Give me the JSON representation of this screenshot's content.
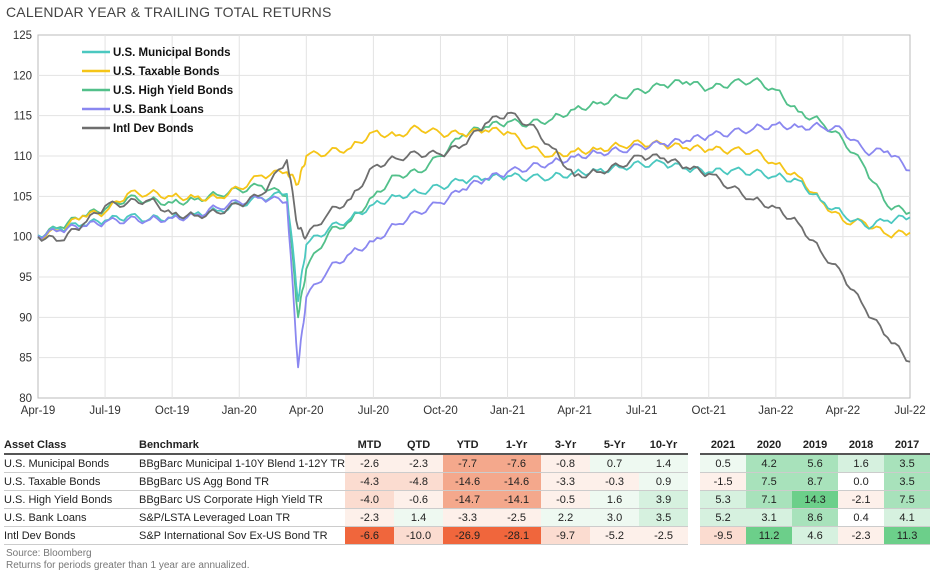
{
  "title": "CALENDAR YEAR & TRAILING TOTAL RETURNS",
  "colors": {
    "muni": "#4bc8c0",
    "taxable": "#f5c518",
    "highyield": "#52c08a",
    "bankloans": "#8a87f0",
    "intldev": "#6e6e6e",
    "red_strong": "#f0663c",
    "red_mid": "#f4a88c",
    "red_light": "#fbdcd0",
    "red_faint": "#fdf0ea",
    "green_strong": "#6ccf8a",
    "green_mid": "#a8e2bb",
    "green_light": "#d6f1df",
    "green_faint": "#eef9f1"
  },
  "chart_data": {
    "type": "line",
    "title": "CALENDAR YEAR & TRAILING TOTAL RETURNS",
    "ylim": [
      80,
      125
    ],
    "yticks": [
      "80",
      "85",
      "90",
      "95",
      "100",
      "105",
      "110",
      "115",
      "120",
      "125"
    ],
    "xlim": [
      "2019-04",
      "2022-07"
    ],
    "xticks": [
      "Apr-19",
      "Jul-19",
      "Oct-19",
      "Jan-20",
      "Apr-20",
      "Jul-20",
      "Oct-20",
      "Jan-21",
      "Apr-21",
      "Jul-21",
      "Oct-21",
      "Jan-22",
      "Apr-22",
      "Jul-22"
    ],
    "grid": true,
    "legend_position": "top-left",
    "x": [
      "2019-04",
      "2019-05",
      "2019-06",
      "2019-07",
      "2019-08",
      "2019-09",
      "2019-10",
      "2019-11",
      "2019-12",
      "2020-01",
      "2020-02",
      "2020-03-05",
      "2020-03-20",
      "2020-04",
      "2020-05",
      "2020-06",
      "2020-07",
      "2020-08",
      "2020-09",
      "2020-10",
      "2020-11",
      "2020-12",
      "2021-01",
      "2021-02",
      "2021-03",
      "2021-04",
      "2021-05",
      "2021-06",
      "2021-07",
      "2021-08",
      "2021-09",
      "2021-10",
      "2021-11",
      "2021-12",
      "2022-01",
      "2022-02",
      "2022-03",
      "2022-04",
      "2022-05",
      "2022-06",
      "2022-07"
    ],
    "series": [
      {
        "name": "U.S.  Municipal Bonds",
        "values": [
          100.2,
          101.0,
          101.5,
          102.0,
          102.5,
          102.2,
          102.4,
          102.8,
          103.2,
          104.0,
          104.8,
          105.3,
          92.0,
          99.0,
          101.0,
          102.3,
          104.0,
          105.0,
          105.5,
          106.2,
          107.0,
          107.2,
          107.5,
          107.3,
          107.4,
          107.9,
          108.2,
          108.6,
          109.0,
          109.1,
          108.4,
          108.0,
          108.2,
          108.0,
          107.5,
          107.0,
          104.5,
          102.8,
          101.3,
          102.0,
          102.4
        ]
      },
      {
        "name": "U.S. Taxable Bonds",
        "values": [
          100.0,
          100.8,
          102.6,
          103.0,
          105.3,
          105.4,
          105.0,
          104.9,
          104.8,
          106.0,
          107.6,
          108.0,
          106.5,
          110.0,
          110.5,
          111.0,
          113.0,
          112.5,
          113.5,
          112.8,
          112.7,
          113.2,
          113.0,
          111.0,
          110.0,
          110.6,
          110.8,
          111.3,
          111.6,
          111.4,
          111.0,
          110.8,
          110.7,
          110.6,
          109.0,
          107.5,
          104.5,
          102.0,
          101.7,
          100.2,
          100.5
        ]
      },
      {
        "name": "U.S. High Yield Bonds",
        "values": [
          100.1,
          101.2,
          102.6,
          103.4,
          104.8,
          104.5,
          104.2,
          104.6,
          105.2,
          105.8,
          106.3,
          105.0,
          90.0,
          96.0,
          100.5,
          102.0,
          105.0,
          107.6,
          108.0,
          110.0,
          112.6,
          113.6,
          114.2,
          114.0,
          114.6,
          115.8,
          116.5,
          117.3,
          118.1,
          118.8,
          119.2,
          118.3,
          119.0,
          119.4,
          118.2,
          115.5,
          114.3,
          112.0,
          108.5,
          103.8,
          103.0
        ]
      },
      {
        "name": "U.S. Bank Loans",
        "values": [
          100.1,
          100.8,
          101.3,
          101.8,
          102.1,
          102.1,
          102.3,
          102.6,
          103.6,
          104.3,
          104.8,
          104.3,
          83.8,
          92.5,
          96.0,
          98.0,
          99.4,
          101.5,
          103.0,
          104.2,
          105.9,
          107.1,
          108.0,
          108.6,
          109.2,
          109.9,
          110.4,
          110.7,
          111.2,
          111.5,
          111.9,
          112.5,
          112.9,
          113.4,
          113.9,
          113.6,
          113.7,
          113.2,
          110.5,
          110.6,
          108.2
        ]
      },
      {
        "name": "Intl Dev Bonds",
        "values": [
          100.0,
          99.5,
          101.5,
          103.8,
          104.2,
          104.6,
          102.8,
          102.6,
          103.0,
          104.0,
          105.2,
          109.5,
          101.0,
          100.0,
          103.0,
          104.7,
          108.7,
          109.7,
          110.3,
          110.2,
          111.3,
          114.0,
          115.3,
          113.9,
          111.0,
          107.5,
          108.0,
          108.8,
          110.0,
          109.7,
          108.6,
          107.8,
          106.1,
          104.6,
          103.6,
          101.7,
          98.2,
          95.2,
          91.0,
          87.5,
          84.5
        ]
      }
    ]
  },
  "table": {
    "headers": {
      "asset_class": "Asset Class",
      "benchmark": "Benchmark",
      "trailing": [
        "MTD",
        "QTD",
        "YTD",
        "1-Yr",
        "3-Yr",
        "5-Yr",
        "10-Yr"
      ],
      "calendar": [
        "2021",
        "2020",
        "2019",
        "2018",
        "2017"
      ]
    },
    "rows": [
      {
        "asset": "U.S. Municipal Bonds",
        "benchmark": "BBgBarc Municipal 1-10Y Blend 1-12Y TR",
        "trailing": [
          "-2.6",
          "-2.3",
          "-7.7",
          "-7.6",
          "-0.8",
          "0.7",
          "1.4"
        ],
        "trailing_shade": [
          "red_faint",
          "red_faint",
          "red_mid",
          "red_mid",
          "red_faint",
          "green_faint",
          "green_faint"
        ],
        "calendar": [
          "0.5",
          "4.2",
          "5.6",
          "1.6",
          "3.5"
        ],
        "calendar_shade": [
          "green_faint",
          "green_mid",
          "green_mid",
          "green_light",
          "green_mid"
        ]
      },
      {
        "asset": "U.S. Taxable Bonds",
        "benchmark": "BBgBarc US Agg Bond TR",
        "trailing": [
          "-4.3",
          "-4.8",
          "-14.6",
          "-14.6",
          "-3.3",
          "-0.3",
          "0.9"
        ],
        "trailing_shade": [
          "red_light",
          "red_light",
          "red_mid",
          "red_mid",
          "red_faint",
          "red_faint",
          "green_faint"
        ],
        "calendar": [
          "-1.5",
          "7.5",
          "8.7",
          "0.0",
          "3.5"
        ],
        "calendar_shade": [
          "red_faint",
          "green_mid",
          "green_mid",
          "",
          "green_mid"
        ]
      },
      {
        "asset": "U.S. High Yield Bonds",
        "benchmark": "BBgBarc US Corporate High Yield TR",
        "trailing": [
          "-4.0",
          "-0.6",
          "-14.7",
          "-14.1",
          "-0.5",
          "1.6",
          "3.9"
        ],
        "trailing_shade": [
          "red_light",
          "red_faint",
          "red_mid",
          "red_mid",
          "red_faint",
          "green_faint",
          "green_light"
        ],
        "calendar": [
          "5.3",
          "7.1",
          "14.3",
          "-2.1",
          "7.5"
        ],
        "calendar_shade": [
          "green_light",
          "green_mid",
          "green_strong",
          "red_faint",
          "green_mid"
        ]
      },
      {
        "asset": "U.S. Bank Loans",
        "benchmark": "S&P/LSTA Leveraged Loan TR",
        "trailing": [
          "-2.3",
          "1.4",
          "-3.3",
          "-2.5",
          "2.2",
          "3.0",
          "3.5"
        ],
        "trailing_shade": [
          "red_faint",
          "green_faint",
          "red_faint",
          "red_faint",
          "green_faint",
          "green_faint",
          "green_light"
        ],
        "calendar": [
          "5.2",
          "3.1",
          "8.6",
          "0.4",
          "4.1"
        ],
        "calendar_shade": [
          "green_light",
          "green_light",
          "green_mid",
          "",
          "green_light"
        ]
      },
      {
        "asset": "Intl Dev Bonds",
        "benchmark": "S&P International Sov Ex-US Bond TR",
        "trailing": [
          "-6.6",
          "-10.0",
          "-26.9",
          "-28.1",
          "-9.7",
          "-5.2",
          "-2.5"
        ],
        "trailing_shade": [
          "red_strong",
          "red_light",
          "red_strong",
          "red_strong",
          "red_light",
          "red_faint",
          "red_faint"
        ],
        "calendar": [
          "-9.5",
          "11.2",
          "4.6",
          "-2.3",
          "11.3"
        ],
        "calendar_shade": [
          "red_light",
          "green_strong",
          "green_light",
          "red_faint",
          "green_strong"
        ]
      }
    ]
  },
  "footnotes": {
    "source": "Source: Bloomberg",
    "note": "Returns for periods greater than 1 year are annualized."
  }
}
